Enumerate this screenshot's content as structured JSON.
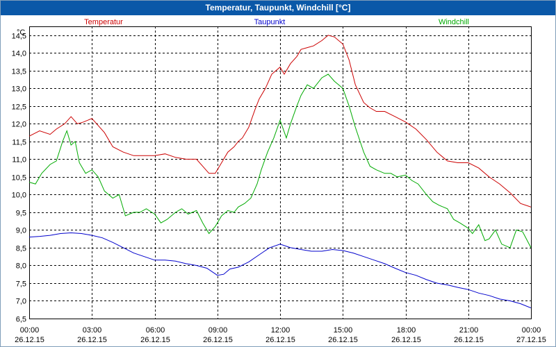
{
  "window": {
    "title": "Temperatur, Taupunkt, Windchill [°C]"
  },
  "colors": {
    "titlebar": "#0a58a8",
    "temperatur": "#cc0000",
    "taupunkt": "#0000cc",
    "windchill": "#00aa00",
    "grid": "#000000"
  },
  "chart_data": {
    "type": "line",
    "title": "Temperatur, Taupunkt, Windchill [°C]",
    "ylabel": "°C",
    "ylim": [
      6.5,
      14.75
    ],
    "yticks": [
      "6,5",
      "7,0",
      "7,5",
      "8,0",
      "8,5",
      "9,0",
      "9,5",
      "10,0",
      "10,5",
      "11,0",
      "11,5",
      "12,0",
      "12,5",
      "13,0",
      "13,5",
      "14,0",
      "14,5"
    ],
    "xlim_hours": [
      0,
      24
    ],
    "xticks": [
      {
        "time": "00:00",
        "date": "26.12.15"
      },
      {
        "time": "03:00",
        "date": "26.12.15"
      },
      {
        "time": "06:00",
        "date": "26.12.15"
      },
      {
        "time": "09:00",
        "date": "26.12.15"
      },
      {
        "time": "12:00",
        "date": "26.12.15"
      },
      {
        "time": "15:00",
        "date": "26.12.15"
      },
      {
        "time": "18:00",
        "date": "26.12.15"
      },
      {
        "time": "21:00",
        "date": "26.12.15"
      },
      {
        "time": "00:00",
        "date": "27.12.15"
      }
    ],
    "grid": true,
    "legend": [
      "Temperatur",
      "Taupunkt",
      "Windchill"
    ],
    "series": [
      {
        "name": "Temperatur",
        "color": "#cc0000",
        "x": [
          0,
          0.5,
          1,
          1.3,
          1.7,
          2,
          2.3,
          2.6,
          3,
          3.3,
          3.6,
          4,
          4.5,
          5,
          5.5,
          6,
          6.5,
          7,
          7.5,
          8,
          8.3,
          8.6,
          8.9,
          9.2,
          9.5,
          9.8,
          10,
          10.2,
          10.5,
          10.8,
          11,
          11.3,
          11.6,
          12,
          12.2,
          12.5,
          12.8,
          13,
          13.3,
          13.6,
          14,
          14.3,
          14.6,
          15,
          15.3,
          15.6,
          16,
          16.3,
          16.6,
          17,
          17.5,
          18,
          18.5,
          19,
          19.5,
          20,
          20.5,
          21,
          21.5,
          22,
          22.5,
          23,
          23.5,
          24
        ],
        "y": [
          11.65,
          11.8,
          11.7,
          11.85,
          12.0,
          12.2,
          12.0,
          12.05,
          12.15,
          11.95,
          11.75,
          11.35,
          11.2,
          11.1,
          11.1,
          11.1,
          11.15,
          11.05,
          11.0,
          11.0,
          10.8,
          10.6,
          10.6,
          10.9,
          11.2,
          11.35,
          11.5,
          11.6,
          11.9,
          12.4,
          12.7,
          13.0,
          13.4,
          13.6,
          13.4,
          13.7,
          13.9,
          14.1,
          14.15,
          14.2,
          14.35,
          14.5,
          14.45,
          14.25,
          13.8,
          13.1,
          12.6,
          12.45,
          12.35,
          12.35,
          12.2,
          12.05,
          11.85,
          11.55,
          11.2,
          10.95,
          10.9,
          10.9,
          10.75,
          10.5,
          10.3,
          10.05,
          9.75,
          9.65
        ]
      },
      {
        "name": "Taupunkt",
        "color": "#0000cc",
        "x": [
          0,
          0.5,
          1,
          1.5,
          2,
          2.5,
          3,
          3.5,
          4,
          4.5,
          5,
          5.5,
          6,
          6.5,
          7,
          7.5,
          8,
          8.5,
          9,
          9.3,
          9.6,
          10,
          10.5,
          11,
          11.5,
          12,
          12.5,
          13,
          13.5,
          14,
          14.5,
          15,
          15.5,
          16,
          16.5,
          17,
          17.5,
          18,
          18.5,
          19,
          19.5,
          20,
          20.5,
          21,
          21.5,
          22,
          22.5,
          23,
          23.5,
          24
        ],
        "y": [
          8.8,
          8.82,
          8.85,
          8.9,
          8.92,
          8.9,
          8.85,
          8.78,
          8.65,
          8.5,
          8.35,
          8.25,
          8.15,
          8.15,
          8.12,
          8.05,
          8.0,
          7.92,
          7.72,
          7.75,
          7.9,
          7.95,
          8.1,
          8.3,
          8.5,
          8.6,
          8.5,
          8.45,
          8.4,
          8.4,
          8.45,
          8.42,
          8.35,
          8.25,
          8.15,
          8.05,
          7.92,
          7.8,
          7.72,
          7.6,
          7.5,
          7.45,
          7.38,
          7.32,
          7.22,
          7.15,
          7.05,
          7.0,
          6.92,
          6.8
        ]
      },
      {
        "name": "Windchill",
        "color": "#00aa00",
        "x": [
          0,
          0.3,
          0.6,
          1,
          1.3,
          1.6,
          1.8,
          2,
          2.2,
          2.4,
          2.7,
          3,
          3.3,
          3.6,
          4,
          4.3,
          4.6,
          5,
          5.3,
          5.6,
          6,
          6.3,
          6.6,
          7,
          7.3,
          7.6,
          8,
          8.3,
          8.6,
          8.9,
          9.2,
          9.5,
          9.8,
          10,
          10.3,
          10.6,
          10.9,
          11.1,
          11.4,
          11.7,
          12,
          12.3,
          12.5,
          12.8,
          13,
          13.3,
          13.6,
          14,
          14.3,
          14.6,
          15,
          15.3,
          15.6,
          16,
          16.3,
          16.6,
          17,
          17.3,
          17.6,
          18,
          18.3,
          18.6,
          19,
          19.3,
          19.6,
          20,
          20.3,
          20.6,
          21,
          21.2,
          21.5,
          21.8,
          22,
          22.3,
          22.6,
          23,
          23.3,
          23.6,
          24
        ],
        "y": [
          10.35,
          10.3,
          10.6,
          10.85,
          10.95,
          11.5,
          11.8,
          11.4,
          11.5,
          10.9,
          10.6,
          10.7,
          10.5,
          10.1,
          9.9,
          10.0,
          9.4,
          9.5,
          9.5,
          9.6,
          9.45,
          9.2,
          9.3,
          9.5,
          9.6,
          9.45,
          9.55,
          9.2,
          8.9,
          9.1,
          9.4,
          9.55,
          9.5,
          9.65,
          9.75,
          9.9,
          10.3,
          10.7,
          11.2,
          11.6,
          12.1,
          11.6,
          12.0,
          12.5,
          12.8,
          13.1,
          13.0,
          13.3,
          13.4,
          13.2,
          13.0,
          12.5,
          11.9,
          11.2,
          10.8,
          10.7,
          10.6,
          10.6,
          10.5,
          10.55,
          10.4,
          10.3,
          10.0,
          9.8,
          9.7,
          9.6,
          9.3,
          9.2,
          9.05,
          8.9,
          9.15,
          8.7,
          8.75,
          9.0,
          8.6,
          8.5,
          9.0,
          8.95,
          8.5
        ]
      }
    ]
  }
}
